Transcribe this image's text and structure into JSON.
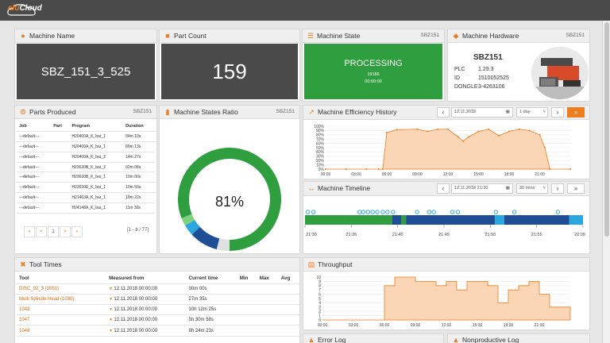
{
  "app": {
    "logo_prefix": "elu",
    "logo_suffix": "Cloud"
  },
  "machine_name": {
    "title": "Machine Name",
    "value": "SBZ_151_3_525"
  },
  "part_count": {
    "title": "Part Count",
    "value": "159"
  },
  "machine_state": {
    "title": "Machine State",
    "tag": "SBZ151",
    "state": "PROCESSING",
    "code": "19186",
    "time": "00:00:00",
    "color": "#2e9e3e"
  },
  "machine_hardware": {
    "title": "Machine Hardware",
    "tag": "SBZ151",
    "model": "SBZ151",
    "rows": [
      [
        "PLC",
        "1.29.3"
      ],
      [
        "ID",
        "1510052525"
      ],
      [
        "DONGLE",
        "3-4263106"
      ]
    ]
  },
  "parts_produced": {
    "title": "Parts Produced",
    "tag": "SBZ151",
    "columns": [
      "Job",
      "Part",
      "Program",
      "Duration"
    ],
    "rows": [
      [
        "---default---",
        "",
        "H20400A_K_bar_1",
        "04m 10s"
      ],
      [
        "---default---",
        "",
        "H20400A_K_bar_1",
        "00m 13s"
      ],
      [
        "---default---",
        "",
        "H20400A_K_bar_2",
        "14m 27s"
      ],
      [
        "---default---",
        "",
        "H23630B_K_bar_2",
        "02m 08s"
      ],
      [
        "---default---",
        "",
        "H23630B_K_bar_1",
        "10m 00s"
      ],
      [
        "---default---",
        "",
        "H23630E_K_bar_1",
        "10m 50s"
      ],
      [
        "---default---",
        "",
        "H21463A_K_bar_1",
        "10m 22s"
      ],
      [
        "---default---",
        "",
        "H24148A_K_bar_1",
        "11m 30s"
      ]
    ],
    "pagination": {
      "first": "«",
      "prev": "<",
      "page": "1",
      "next": ">",
      "last": "»",
      "range": "[1 - 8 / 77]"
    }
  },
  "states_ratio": {
    "title": "Machine States Ratio",
    "tag": "SBZ151",
    "center_label": "81%",
    "segments": [
      {
        "value": 81,
        "color": "#2e9e3e"
      },
      {
        "value": 2.5,
        "color": "#7fd07f"
      },
      {
        "value": 3.5,
        "color": "#29a7de"
      },
      {
        "value": 9,
        "color": "#1f4e96"
      },
      {
        "value": 4,
        "color": "#e0e0e0"
      }
    ]
  },
  "efficiency": {
    "title": "Machine Efficiency History",
    "date": "12.11.2018",
    "range": "1 day",
    "y_ticks": [
      "100%",
      "90%",
      "80%",
      "70%",
      "60%",
      "50%",
      "40%",
      "30%",
      "20%",
      "10%",
      "0%"
    ],
    "x_ticks": [
      "00:00",
      "03:00",
      "06:00",
      "09:00",
      "12:00",
      "15:00",
      "18:00",
      "21:00"
    ],
    "chart_data": {
      "type": "area",
      "x": [
        0,
        2,
        4,
        5.2,
        5.6,
        6,
        7,
        9,
        10,
        11,
        12,
        13,
        13.5,
        14,
        15,
        16,
        17,
        18,
        19,
        20,
        21,
        21.5,
        22,
        24
      ],
      "values": [
        0,
        0,
        0,
        0,
        0,
        85,
        92,
        93,
        88,
        93,
        93,
        75,
        65,
        75,
        88,
        93,
        78,
        88,
        93,
        90,
        80,
        50,
        0,
        0
      ],
      "ylim": [
        0,
        100
      ],
      "xlim": [
        0,
        24
      ]
    }
  },
  "timeline": {
    "title": "Machine Timeline",
    "date": "12.11.2018 21:30",
    "range": "30 mins",
    "x_ticks": [
      "21:30",
      "21:35",
      "21:40",
      "21:45",
      "21:50",
      "21:55",
      "22:00"
    ],
    "segments": [
      {
        "start": 0,
        "end": 9.4,
        "color": "#2e9e3e"
      },
      {
        "start": 9.4,
        "end": 10.4,
        "color": "#1f4e96"
      },
      {
        "start": 10.4,
        "end": 10.9,
        "color": "#2e9e3e"
      },
      {
        "start": 10.9,
        "end": 20.5,
        "color": "#1f4e96"
      },
      {
        "start": 20.5,
        "end": 21.5,
        "color": "#29a7de"
      },
      {
        "start": 21.5,
        "end": 28.5,
        "color": "#1f4e96"
      },
      {
        "start": 28.5,
        "end": 30,
        "color": "#29a7de"
      }
    ],
    "markers": [
      0.3,
      0.9,
      5.9,
      6.3,
      6.8,
      7.3,
      7.8,
      8.4,
      8.9,
      9.5,
      12.1,
      13.4,
      13.9,
      15.9,
      16.5,
      20.6,
      22.6,
      27.3
    ]
  },
  "tool_times": {
    "title": "Tool Times",
    "columns": [
      "Tool",
      "Measured from",
      "Current time",
      "Min",
      "Max",
      "Avg"
    ],
    "rows": [
      [
        "DISC_92_3 (1051)",
        "12.11.2018 00:00:00",
        "00m 00s",
        "",
        "",
        ""
      ],
      [
        "Multi Spindle Head (1030)",
        "12.11.2018 00:00:00",
        "27m 35s",
        "",
        "",
        ""
      ],
      [
        "1043",
        "12.11.2018 00:00:00",
        "10h 12m 25s",
        "",
        "",
        ""
      ],
      [
        "1047",
        "12.11.2018 00:00:00",
        "5h 30m 58s",
        "",
        "",
        ""
      ],
      [
        "1048",
        "12.11.2018 00:00:00",
        "9h 24m 23s",
        "",
        "",
        ""
      ]
    ]
  },
  "throughput": {
    "title": "Throughput",
    "y_ticks": [
      "10",
      "9",
      "8",
      "7",
      "6",
      "5",
      "4",
      "3",
      "2",
      "1",
      "0"
    ],
    "x_ticks": [
      "00:00",
      "03:00",
      "06:00",
      "09:00",
      "12:00",
      "15:00",
      "18:00",
      "21:00"
    ],
    "chart_data": {
      "type": "area",
      "x": [
        0,
        1,
        2,
        3,
        4,
        5,
        6,
        7,
        8,
        9,
        10,
        11,
        12,
        13,
        14,
        15,
        16,
        17,
        18,
        19,
        20,
        21,
        22,
        23,
        24
      ],
      "values": [
        0,
        0,
        0,
        0,
        0,
        0,
        8,
        10,
        10,
        9,
        9,
        8,
        9,
        7,
        9,
        9,
        8,
        4,
        7,
        8,
        9,
        6,
        3,
        3,
        3
      ],
      "ylim": [
        0,
        10
      ],
      "xlim": [
        0,
        24
      ]
    }
  },
  "error_log": {
    "title": "Error Log"
  },
  "nonproductive_log": {
    "title": "Nonproductive Log"
  }
}
